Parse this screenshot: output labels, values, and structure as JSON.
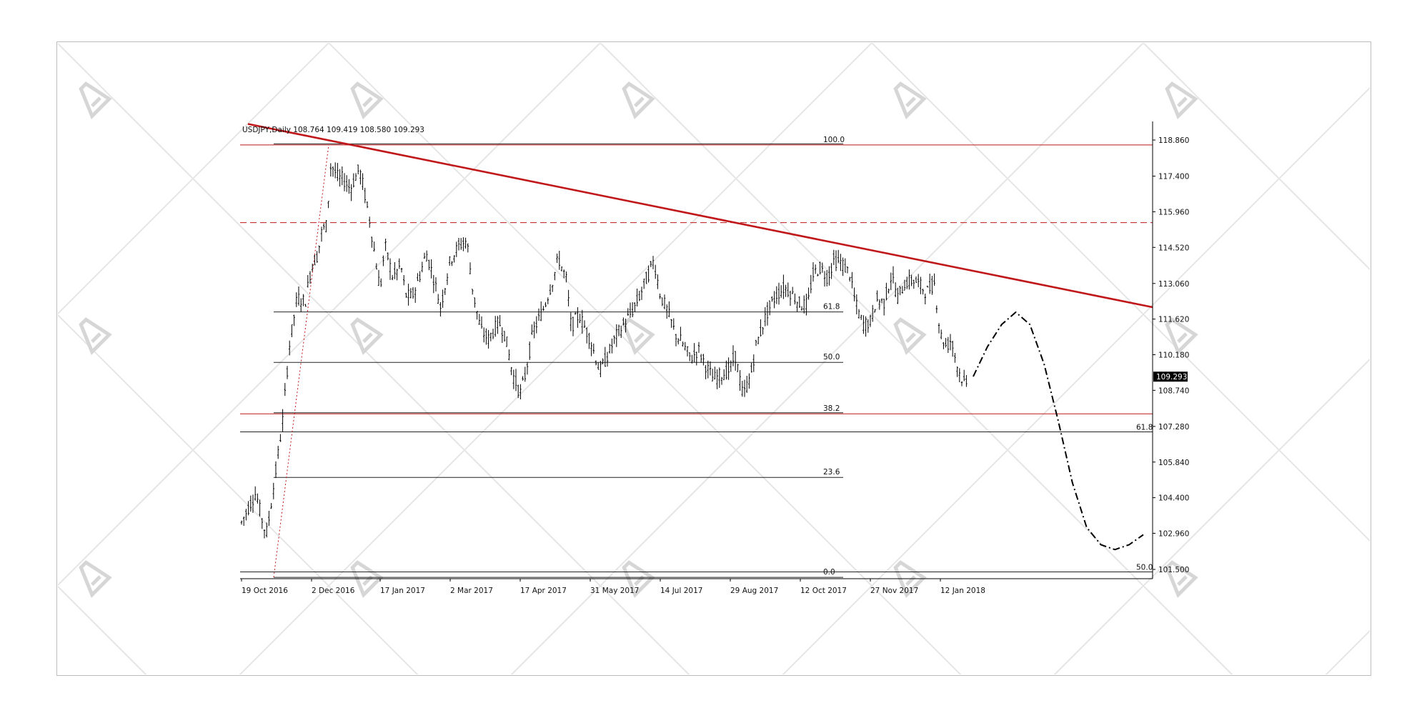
{
  "chart_data": {
    "type": "candlestick",
    "symbol_header": "USDJPY,Daily  108.764 109.419 108.580 109.293",
    "y_ticks": [
      "118.860",
      "117.400",
      "115.960",
      "114.520",
      "113.060",
      "111.620",
      "110.180",
      "108.740",
      "107.280",
      "105.840",
      "104.400",
      "102.960",
      "101.500"
    ],
    "y_values": [
      118.86,
      117.4,
      115.96,
      114.52,
      113.06,
      111.62,
      110.18,
      108.74,
      107.28,
      105.84,
      104.4,
      102.96,
      101.5
    ],
    "x_ticks": [
      "19 Oct 2016",
      "2 Dec 2016",
      "17 Jan 2017",
      "2 Mar 2017",
      "17 Apr 2017",
      "31 May 2017",
      "14 Jul 2017",
      "29 Aug 2017",
      "12 Oct 2017",
      "27 Nov 2017",
      "12 Jan 2018"
    ],
    "last_price": "109.293",
    "fib_levels": [
      {
        "label": "100.0",
        "price": 118.66
      },
      {
        "label": "61.8",
        "price": 111.91
      },
      {
        "label": "50.0",
        "price": 109.87
      },
      {
        "label": "38.2",
        "price": 107.79
      },
      {
        "label": "23.6",
        "price": 105.22
      },
      {
        "label": "0.0",
        "price": 101.18
      }
    ],
    "right_levels": [
      {
        "label": "61.8",
        "price": 107.06
      },
      {
        "label": "50.0",
        "price": 101.4
      }
    ],
    "dashed_level": 115.52,
    "close_path": [
      [
        "19 Oct 2016",
        103.4
      ],
      [
        "24 Oct 2016",
        104.1
      ],
      [
        "28 Oct 2016",
        104.6
      ],
      [
        "2 Nov 2016",
        103.2
      ],
      [
        "4 Nov 2016",
        103.0
      ],
      [
        "9 Nov 2016",
        105.2
      ],
      [
        "14 Nov 2016",
        107.6
      ],
      [
        "18 Nov 2016",
        110.5
      ],
      [
        "23 Nov 2016",
        112.5
      ],
      [
        "28 Nov 2016",
        112.3
      ],
      [
        "2 Dec 2016",
        113.8
      ],
      [
        "6 Dec 2016",
        114.2
      ],
      [
        "9 Dec 2016",
        115.2
      ],
      [
        "12 Dec 2016",
        115.4
      ],
      [
        "15 Dec 2016",
        117.9
      ],
      [
        "20 Dec 2016",
        117.3
      ],
      [
        "23 Dec 2016",
        117.3
      ],
      [
        "28 Dec 2016",
        116.9
      ],
      [
        "3 Jan 2017",
        117.7
      ],
      [
        "6 Jan 2017",
        116.9
      ],
      [
        "10 Jan 2017",
        115.6
      ],
      [
        "13 Jan 2017",
        114.4
      ],
      [
        "17 Jan 2017",
        112.8
      ],
      [
        "20 Jan 2017",
        114.6
      ],
      [
        "25 Jan 2017",
        113.3
      ],
      [
        "30 Jan 2017",
        113.8
      ],
      [
        "2 Feb 2017",
        112.6
      ],
      [
        "6 Feb 2017",
        112.5
      ],
      [
        "10 Feb 2017",
        113.2
      ],
      [
        "15 Feb 2017",
        114.3
      ],
      [
        "20 Feb 2017",
        113.2
      ],
      [
        "24 Feb 2017",
        112.1
      ],
      [
        "2 Mar 2017",
        114.0
      ],
      [
        "8 Mar 2017",
        114.6
      ],
      [
        "13 Mar 2017",
        114.8
      ],
      [
        "17 Mar 2017",
        112.7
      ],
      [
        "22 Mar 2017",
        111.2
      ],
      [
        "27 Mar 2017",
        110.8
      ],
      [
        "3 Apr 2017",
        111.5
      ],
      [
        "7 Apr 2017",
        111.0
      ],
      [
        "12 Apr 2017",
        109.4
      ],
      [
        "17 Apr 2017",
        108.6
      ],
      [
        "20 Apr 2017",
        109.3
      ],
      [
        "25 Apr 2017",
        111.1
      ],
      [
        "2 May 2017",
        112.1
      ],
      [
        "8 May 2017",
        113.3
      ],
      [
        "11 May 2017",
        114.1
      ],
      [
        "16 May 2017",
        113.2
      ],
      [
        "19 May 2017",
        111.3
      ],
      [
        "24 May 2017",
        111.8
      ],
      [
        "31 May 2017",
        110.8
      ],
      [
        "6 Jun 2017",
        109.5
      ],
      [
        "12 Jun 2017",
        110.3
      ],
      [
        "16 Jun 2017",
        110.9
      ],
      [
        "21 Jun 2017",
        111.4
      ],
      [
        "26 Jun 2017",
        111.9
      ],
      [
        "30 Jun 2017",
        112.4
      ],
      [
        "5 Jul 2017",
        113.2
      ],
      [
        "10 Jul 2017",
        114.0
      ],
      [
        "14 Jul 2017",
        112.6
      ],
      [
        "19 Jul 2017",
        111.9
      ],
      [
        "24 Jul 2017",
        111.0
      ],
      [
        "28 Jul 2017",
        110.7
      ],
      [
        "3 Aug 2017",
        110.0
      ],
      [
        "8 Aug 2017",
        110.4
      ],
      [
        "14 Aug 2017",
        109.6
      ],
      [
        "18 Aug 2017",
        109.2
      ],
      [
        "24 Aug 2017",
        109.4
      ],
      [
        "29 Aug 2017",
        109.6
      ],
      [
        "1 Sep 2017",
        110.2
      ],
      [
        "6 Sep 2017",
        108.5
      ],
      [
        "11 Sep 2017",
        109.4
      ],
      [
        "14 Sep 2017",
        110.5
      ],
      [
        "19 Sep 2017",
        111.5
      ],
      [
        "22 Sep 2017",
        112.0
      ],
      [
        "27 Sep 2017",
        112.6
      ],
      [
        "2 Oct 2017",
        112.9
      ],
      [
        "6 Oct 2017",
        112.7
      ],
      [
        "12 Oct 2017",
        112.2
      ],
      [
        "17 Oct 2017",
        112.2
      ],
      [
        "20 Oct 2017",
        113.4
      ],
      [
        "25 Oct 2017",
        113.7
      ],
      [
        "30 Oct 2017",
        113.3
      ],
      [
        "3 Nov 2017",
        114.0
      ],
      [
        "8 Nov 2017",
        113.9
      ],
      [
        "14 Nov 2017",
        113.4
      ],
      [
        "17 Nov 2017",
        112.3
      ],
      [
        "22 Nov 2017",
        111.4
      ],
      [
        "27 Nov 2017",
        111.5
      ],
      [
        "1 Dec 2017",
        112.4
      ],
      [
        "6 Dec 2017",
        112.3
      ],
      [
        "11 Dec 2017",
        113.4
      ],
      [
        "15 Dec 2017",
        112.5
      ],
      [
        "20 Dec 2017",
        113.1
      ],
      [
        "26 Dec 2017",
        113.2
      ],
      [
        "3 Jan 2018",
        112.7
      ],
      [
        "8 Jan 2018",
        113.1
      ],
      [
        "12 Jan 2018",
        111.0
      ],
      [
        "16 Jan 2018",
        110.5
      ],
      [
        "19 Jan 2018",
        110.8
      ],
      [
        "24 Jan 2018",
        109.5
      ],
      [
        "29 Jan 2018",
        108.9
      ],
      [
        "2 Feb 2018",
        110.2
      ],
      [
        "7 Feb 2018",
        109.3
      ]
    ],
    "trendline": [
      [
        "19 Oct 2016",
        119.51
      ],
      [
        "forecast end",
        112.1
      ]
    ],
    "forecast_path": [
      [
        109.3,
        110.5,
        111.4,
        111.9,
        111.4,
        109.8,
        107.5,
        105.0,
        103.2,
        102.5,
        102.3,
        102.5,
        102.9
      ]
    ],
    "colors": {
      "trendline": "#c0181a",
      "level": "#c0181a",
      "candle": "#000000",
      "forecast": "#000000"
    }
  }
}
